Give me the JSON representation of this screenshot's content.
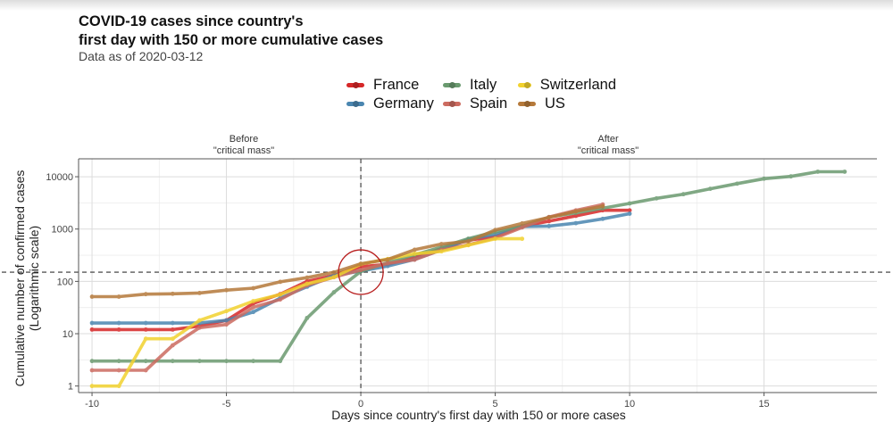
{
  "title": "COVID-19 cases since country's\nfirst day with 150 or more cumulative cases",
  "subtitle": "Data as of 2020-03-12",
  "annotations": {
    "before_line1": "Before",
    "before_line2": "\"critical mass\"",
    "after_line1": "After",
    "after_line2": "\"critical mass\""
  },
  "chart_data": {
    "type": "line",
    "title": "COVID-19 cases since country's first day with 150 or more cumulative cases",
    "subtitle": "Data as of 2020-03-12",
    "xlabel": "Days since country's first day with 150 or more cases",
    "ylabel_line1": "Cumulative number of confirmed cases",
    "ylabel_line2": "(Logarithmic scale)",
    "y_scale": "log10",
    "xlim": [
      -10.5,
      19.2
    ],
    "ylim": [
      0.75,
      22000
    ],
    "x_ticks": [
      -10,
      -5,
      0,
      5,
      10,
      15
    ],
    "x_tick_labels": [
      "-10",
      "-5",
      "0",
      "5",
      "10",
      "15"
    ],
    "y_ticks": [
      1,
      10,
      100,
      1000,
      10000
    ],
    "y_tick_labels": [
      "1",
      "10",
      "100",
      "1000",
      "10000"
    ],
    "reference_lines": {
      "x": 0,
      "y": 150
    },
    "highlight_circle": {
      "x": 0,
      "y": 150
    },
    "grid": true,
    "legend_position": "top",
    "series": [
      {
        "name": "France",
        "color": "#d62728",
        "x": [
          -10,
          -9,
          -8,
          -7,
          -6,
          -5,
          -4,
          -3,
          -2,
          -1,
          0,
          1,
          2,
          3,
          4,
          5,
          6,
          7,
          8,
          9,
          10
        ],
        "y": [
          12,
          12,
          12,
          12,
          14,
          18,
          38,
          57,
          100,
          130,
          191,
          212,
          285,
          423,
          613,
          716,
          1126,
          1412,
          1784,
          2281,
          2281
        ]
      },
      {
        "name": "Germany",
        "color": "#4a86b0",
        "x": [
          -10,
          -9,
          -8,
          -7,
          -6,
          -5,
          -4,
          -3,
          -2,
          -1,
          0,
          1,
          2,
          3,
          4,
          5,
          6,
          7,
          8,
          9,
          10
        ],
        "y": [
          16,
          16,
          16,
          16,
          16,
          18,
          26,
          48,
          79,
          130,
          157,
          196,
          262,
          400,
          639,
          795,
          1112,
          1139,
          1296,
          1567,
          1966
        ]
      },
      {
        "name": "Italy",
        "color": "#6a9a6f",
        "x": [
          -10,
          -9,
          -8,
          -7,
          -6,
          -5,
          -4,
          -3,
          -2,
          -1,
          0,
          1,
          2,
          3,
          4,
          5,
          6,
          7,
          8,
          9,
          10,
          11,
          12,
          13,
          14,
          15,
          16,
          17,
          18
        ],
        "y": [
          3,
          3,
          3,
          3,
          3,
          3,
          3,
          3,
          20,
          62,
          155,
          229,
          322,
          453,
          655,
          888,
          1128,
          1694,
          2036,
          2502,
          3089,
          3858,
          4636,
          5883,
          7375,
          9172,
          10149,
          12462,
          12462
        ]
      },
      {
        "name": "Spain",
        "color": "#cc6b60",
        "x": [
          -10,
          -9,
          -8,
          -7,
          -6,
          -5,
          -4,
          -3,
          -2,
          -1,
          0,
          1,
          2,
          3,
          4,
          5,
          6,
          7,
          8,
          9
        ],
        "y": [
          2,
          2,
          2,
          6,
          13,
          15,
          32,
          45,
          84,
          120,
          165,
          222,
          259,
          400,
          500,
          673,
          1073,
          1695,
          2277,
          2950
        ]
      },
      {
        "name": "Switzerland",
        "color": "#f2d22e",
        "x": [
          -10,
          -9,
          -8,
          -7,
          -6,
          -5,
          -4,
          -3,
          -2,
          -1,
          0,
          1,
          2,
          3,
          4,
          5,
          6
        ],
        "y": [
          1,
          1,
          8,
          8,
          18,
          27,
          42,
          56,
          90,
          120,
          214,
          268,
          337,
          374,
          491,
          652,
          652
        ]
      },
      {
        "name": "US",
        "color": "#b5793a",
        "x": [
          -10,
          -9,
          -8,
          -7,
          -6,
          -5,
          -4,
          -3,
          -2,
          -1,
          0,
          1,
          2,
          3,
          4,
          5,
          6,
          7,
          8,
          9
        ],
        "y": [
          51,
          51,
          57,
          58,
          60,
          68,
          74,
          98,
          118,
          149,
          217,
          262,
          402,
          518,
          583,
          959,
          1281,
          1663,
          2179,
          2726
        ]
      }
    ]
  }
}
